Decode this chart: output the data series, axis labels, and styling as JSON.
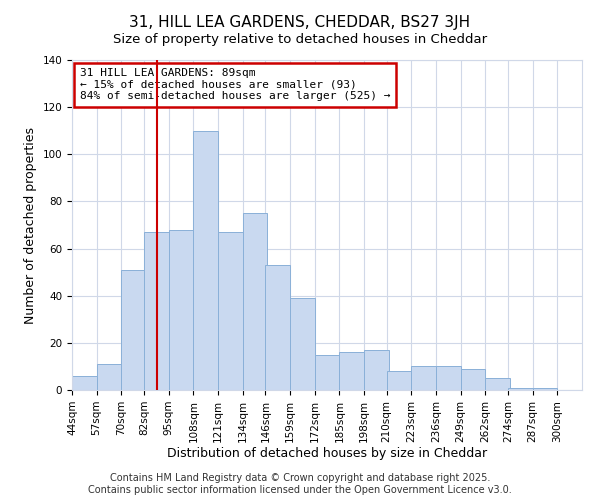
{
  "title": "31, HILL LEA GARDENS, CHEDDAR, BS27 3JH",
  "subtitle": "Size of property relative to detached houses in Cheddar",
  "xlabel": "Distribution of detached houses by size in Cheddar",
  "ylabel": "Number of detached properties",
  "bar_left_edges": [
    44,
    57,
    70,
    82,
    95,
    108,
    121,
    134,
    146,
    159,
    172,
    185,
    198,
    210,
    223,
    236,
    249,
    262,
    274,
    287
  ],
  "bar_heights": [
    6,
    11,
    51,
    67,
    68,
    110,
    67,
    75,
    53,
    39,
    15,
    16,
    17,
    8,
    10,
    10,
    9,
    5,
    1,
    1
  ],
  "bin_width": 13,
  "tick_labels": [
    "44sqm",
    "57sqm",
    "70sqm",
    "82sqm",
    "95sqm",
    "108sqm",
    "121sqm",
    "134sqm",
    "146sqm",
    "159sqm",
    "172sqm",
    "185sqm",
    "198sqm",
    "210sqm",
    "223sqm",
    "236sqm",
    "249sqm",
    "262sqm",
    "274sqm",
    "287sqm",
    "300sqm"
  ],
  "tick_positions": [
    44,
    57,
    70,
    82,
    95,
    108,
    121,
    134,
    146,
    159,
    172,
    185,
    198,
    210,
    223,
    236,
    249,
    262,
    274,
    287,
    300
  ],
  "bar_color": "#c9d9f0",
  "bar_edge_color": "#8ab0d8",
  "vline_x": 89,
  "vline_color": "#cc0000",
  "ylim": [
    0,
    140
  ],
  "yticks": [
    0,
    20,
    40,
    60,
    80,
    100,
    120,
    140
  ],
  "annotation_line1": "31 HILL LEA GARDENS: 89sqm",
  "annotation_line2": "← 15% of detached houses are smaller (93)",
  "annotation_line3": "84% of semi-detached houses are larger (525) →",
  "annotation_box_color": "#cc0000",
  "footer_line1": "Contains HM Land Registry data © Crown copyright and database right 2025.",
  "footer_line2": "Contains public sector information licensed under the Open Government Licence v3.0.",
  "background_color": "#ffffff",
  "grid_color": "#d0d8e8",
  "title_fontsize": 11,
  "subtitle_fontsize": 9.5,
  "axis_label_fontsize": 9,
  "tick_fontsize": 7.5,
  "annotation_fontsize": 8,
  "footer_fontsize": 7
}
